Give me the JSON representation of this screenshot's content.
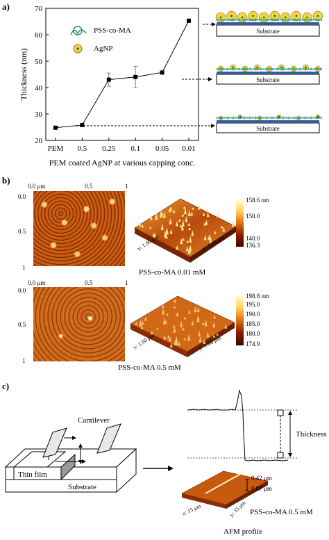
{
  "panel_a": {
    "label": "a)",
    "chart_data": {
      "type": "line",
      "categories": [
        "PEM",
        "0.5",
        "0.25",
        "0.1",
        "0.05",
        "0.01"
      ],
      "values": [
        24.8,
        25.8,
        43.0,
        44.0,
        45.7,
        65.3
      ],
      "errors": [
        0.4,
        0.6,
        2.5,
        4.0,
        0.4,
        0.6
      ],
      "xlabel": "PEM coated AgNP at various capping conc.",
      "ylabel": "Thickness (nm)",
      "ylim": [
        20,
        70
      ],
      "yticks": [
        "20",
        "30",
        "40",
        "50",
        "60",
        "70"
      ]
    },
    "legend": {
      "pss": "PSS-co-MA",
      "agnp": "AgNP"
    },
    "substrate_label": "Substrate"
  },
  "panel_b": {
    "label": "b)",
    "top": {
      "x_ticks": [
        "0.0 μm",
        "0.5",
        "1"
      ],
      "y_ticks": [
        "0.0",
        "0.5",
        "1"
      ],
      "colorbar": [
        "158.6 nm",
        "150.0",
        "140.0",
        "136.3"
      ],
      "axis_x": "x: 1.00 μm",
      "axis_y": "y: 1.00 μm",
      "caption": "PSS-co-MA 0.01 mM"
    },
    "bottom": {
      "x_ticks": [
        "0.0 μm",
        "0.5",
        "1"
      ],
      "y_ticks": [
        "0.0",
        "0.5",
        "1"
      ],
      "colorbar": [
        "198.8 nm",
        "195.0",
        "190.0",
        "185.0",
        "180.0",
        "174.9"
      ],
      "axis_x": "x: 1.00 μm",
      "axis_y": "y: 1.00 μm",
      "caption": "PSS-co-MA 0.5 mM"
    }
  },
  "panel_c": {
    "label": "c)",
    "cantilever": "Cantilever",
    "thin_film": "Thin film",
    "substrate": "Substrate",
    "thickness": "Thickness",
    "scale_top": "0.42 μm",
    "scale_bottom": "0.07 μm",
    "axis_x": "x: 15 μm",
    "axis_y": "y: 15 μm",
    "sample": "PSS-co-MA 0.5 mM",
    "caption": "AFM profile"
  }
}
